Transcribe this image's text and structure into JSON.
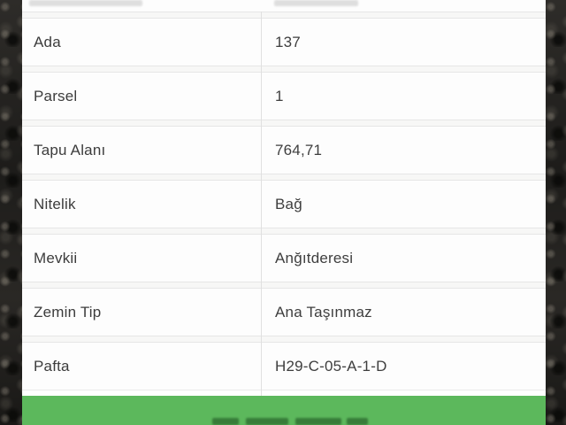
{
  "table": {
    "rows": [
      {
        "label": "Ada",
        "value": "137"
      },
      {
        "label": "Parsel",
        "value": "1"
      },
      {
        "label": "Tapu Alanı",
        "value": "764,71"
      },
      {
        "label": "Nitelik",
        "value": "Bağ"
      },
      {
        "label": "Mevkii",
        "value": "Anğıtderesi"
      },
      {
        "label": "Zemin Tip",
        "value": "Ana Taşınmaz"
      },
      {
        "label": "Pafta",
        "value": "H29-C-05-A-1-D"
      }
    ]
  },
  "button": {
    "label": ""
  },
  "colors": {
    "row_background": "#fdfdfd",
    "separator_border": "#e6e6e6",
    "text": "#3c3c3c",
    "button_green": "#5cb85c",
    "photo_dark": "#25231f"
  }
}
